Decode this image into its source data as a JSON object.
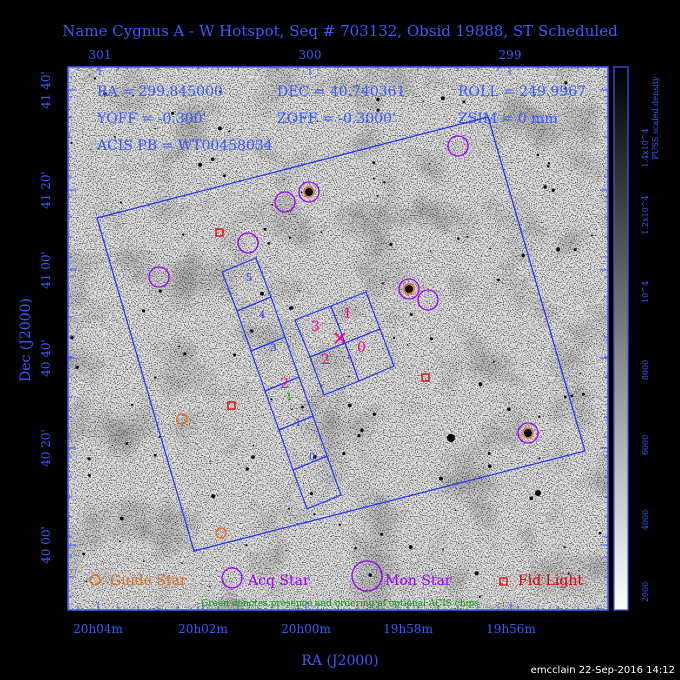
{
  "title": "Name Cygnus A - W Hotspot, Seq # 703132, Obsid 19888, ST Scheduled",
  "header": {
    "ra": "RA = 299.845000",
    "dec": "DEC = 40.740361",
    "roll": "ROLL = 249.9967",
    "yoff": "YOFF = -0.300'",
    "zoff": "ZOFF = -0.3000'",
    "zsim": "ZSIM = 0 mm",
    "acis_pb": "ACIS PB = WT00458034"
  },
  "axes": {
    "x_title": "RA (J2000)",
    "y_title": "Dec (J2000)",
    "x_ticks_bottom": [
      "20h04m",
      "20h02m",
      "20h00m",
      "19h58m",
      "19h56m"
    ],
    "x_ticks_top": [
      "301",
      "300",
      "299"
    ],
    "y_ticks": [
      "41 40'",
      "41 20'",
      "41 00'",
      "40 40'",
      "40 20'",
      "40 00'"
    ]
  },
  "colorbar": {
    "label": "PUSS scaled density",
    "ticks": [
      "1.4x10^4",
      "1.2x10^4",
      "10^4",
      "8000",
      "6000",
      "4000",
      "2000"
    ]
  },
  "legend": {
    "guide": "Guide Star",
    "acq": "Acq Star",
    "mon": "Mon Star",
    "fid": "Fid Light",
    "note": "Green denotes presence and ordering of optional ACIS chips"
  },
  "chips": {
    "s_labels": [
      "5",
      "4",
      "3",
      "2",
      "1",
      "0"
    ],
    "optional_order": "1",
    "i_labels": [
      "3",
      "1",
      "2",
      "0"
    ]
  },
  "colors": {
    "blue": "#3a5bff",
    "purple": "#a000ff",
    "orange": "#e07020",
    "red": "#e00000",
    "magenta": "#ff0090",
    "green": "#00a000"
  },
  "footer": "emcclain 22-Sep-2016 14:12"
}
